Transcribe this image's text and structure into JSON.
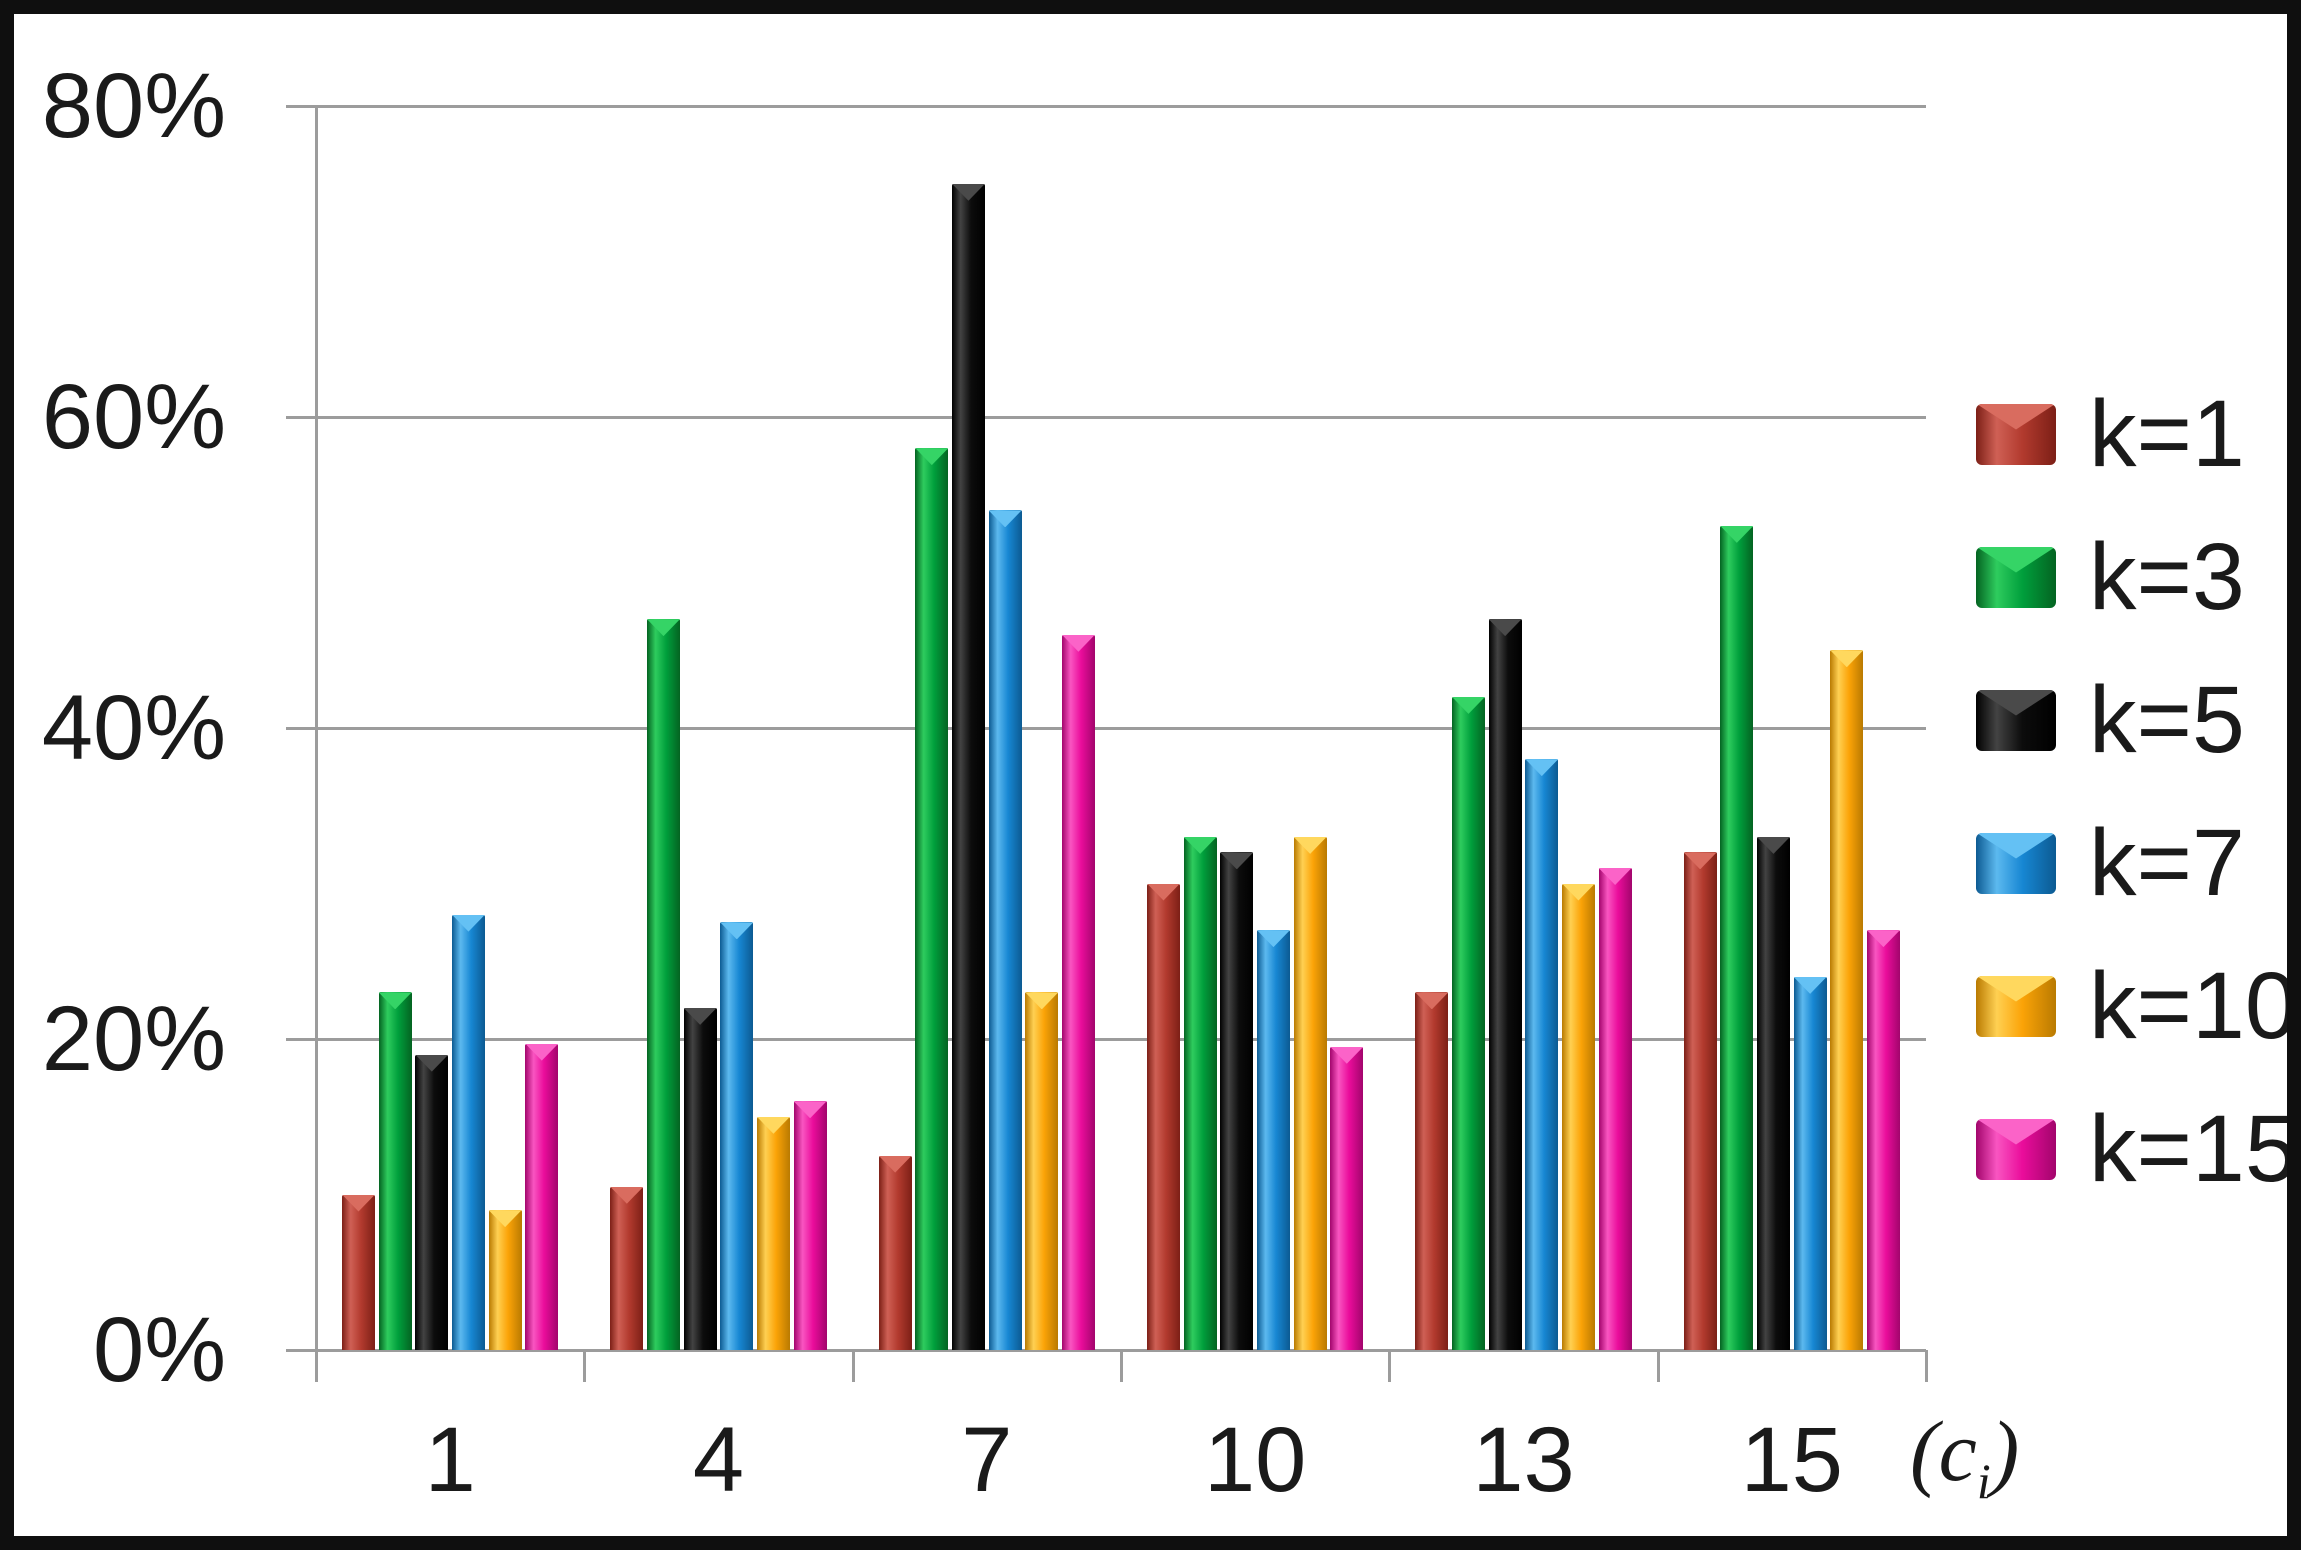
{
  "chart_data": {
    "type": "bar",
    "title": "",
    "xlabel_pre": "(c",
    "xlabel_sub": "i",
    "xlabel_post": ")",
    "categories": [
      "1",
      "4",
      "7",
      "10",
      "13",
      "15"
    ],
    "series": [
      {
        "name": "k=1",
        "color": "#b23a2e",
        "light": "#cf6055",
        "dark": "#7c1f16",
        "cap": "#d96c5f",
        "values": [
          10,
          10.5,
          12.5,
          30,
          23,
          32
        ]
      },
      {
        "name": "k=3",
        "color": "#009f3c",
        "light": "#2ecc5e",
        "dark": "#046321",
        "cap": "#35d466",
        "values": [
          23,
          47,
          58,
          33,
          42,
          53
        ]
      },
      {
        "name": "k=5",
        "color": "#0c0c0c",
        "light": "#434343",
        "dark": "#000000",
        "cap": "#4a4a4a",
        "values": [
          19,
          22,
          75,
          32,
          47,
          33
        ]
      },
      {
        "name": "k=7",
        "color": "#1787d3",
        "light": "#5cb9ef",
        "dark": "#0c5a92",
        "cap": "#64c1f4",
        "values": [
          28,
          27.5,
          54,
          27,
          38,
          24
        ]
      },
      {
        "name": "k=10",
        "color": "#fba307",
        "light": "#ffd052",
        "dark": "#b97a01",
        "cap": "#ffd85e",
        "values": [
          9,
          15,
          23,
          33,
          30,
          45
        ]
      },
      {
        "name": "k=15",
        "color": "#ea0c9b",
        "light": "#f955c1",
        "dark": "#a2056c",
        "cap": "#fb63c8",
        "values": [
          19.7,
          16,
          46,
          19.5,
          31,
          27
        ]
      }
    ],
    "ylim": [
      0,
      80
    ],
    "ytick_labels": [
      "0%",
      "20%",
      "40%",
      "60%",
      "80%"
    ],
    "ytick_values": [
      0,
      20,
      40,
      60,
      80
    ],
    "grid": true,
    "legend_position": "right"
  },
  "style_colors": {
    "grid": "#9c9c9c",
    "axis": "#9c9c9c",
    "text": "#1a1a1a",
    "frame": "#0f0f0f",
    "background": "#ffffff"
  }
}
